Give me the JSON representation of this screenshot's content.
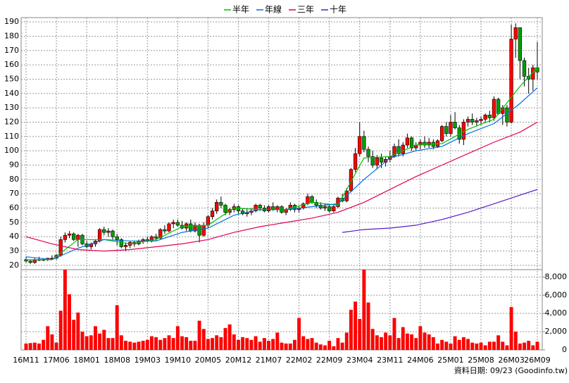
{
  "chart_data": {
    "type": "candlestick",
    "categories": [
      "16M11",
      null,
      null,
      null,
      null,
      null,
      null,
      "17M06",
      null,
      null,
      null,
      null,
      null,
      null,
      "18M01",
      null,
      null,
      null,
      null,
      null,
      null,
      "18M08",
      null,
      null,
      null,
      null,
      null,
      null,
      "19M03",
      null,
      null,
      null,
      null,
      null,
      null,
      "19M10",
      null,
      null,
      null,
      null,
      null,
      null,
      "20M05",
      null,
      null,
      null,
      null,
      null,
      null,
      "20M12",
      null,
      null,
      null,
      null,
      null,
      null,
      "21M07",
      null,
      null,
      null,
      null,
      null,
      null,
      "22M02",
      null,
      null,
      null,
      null,
      null,
      null,
      "22M09",
      null,
      null,
      null,
      null,
      null,
      null,
      "23M04",
      null,
      null,
      null,
      null,
      null,
      null,
      "23M11",
      null,
      null,
      null,
      null,
      null,
      null,
      "24M06",
      null,
      null,
      null,
      null,
      null,
      null,
      "25M01",
      null,
      null,
      null,
      null,
      null,
      null,
      "25M08",
      null,
      null,
      null,
      null,
      null,
      null,
      "26M03",
      null,
      null,
      null,
      null,
      null,
      "26M09"
    ],
    "candles": [
      [
        24,
        26,
        22,
        23
      ],
      [
        23,
        24,
        21,
        22
      ],
      [
        22,
        25,
        21,
        24
      ],
      [
        24,
        26,
        23,
        24
      ],
      [
        24,
        25,
        23,
        24
      ],
      [
        24,
        25,
        23,
        25
      ],
      [
        25,
        27,
        24,
        25
      ],
      [
        25,
        28,
        24,
        27
      ],
      [
        27,
        40,
        26,
        38
      ],
      [
        38,
        43,
        36,
        41
      ],
      [
        41,
        44,
        39,
        42
      ],
      [
        42,
        43,
        37,
        38
      ],
      [
        38,
        42,
        33,
        41
      ],
      [
        41,
        42,
        34,
        35
      ],
      [
        35,
        37,
        32,
        33
      ],
      [
        33,
        36,
        31,
        35
      ],
      [
        35,
        38,
        33,
        37
      ],
      [
        37,
        46,
        36,
        45
      ],
      [
        45,
        47,
        41,
        43
      ],
      [
        43,
        46,
        40,
        44
      ],
      [
        44,
        45,
        38,
        40
      ],
      [
        40,
        42,
        34,
        38
      ],
      [
        38,
        39,
        32,
        33
      ],
      [
        33,
        36,
        30,
        34
      ],
      [
        34,
        37,
        32,
        36
      ],
      [
        36,
        37,
        33,
        35
      ],
      [
        35,
        38,
        34,
        37
      ],
      [
        37,
        39,
        35,
        38
      ],
      [
        38,
        40,
        36,
        37
      ],
      [
        37,
        41,
        36,
        40
      ],
      [
        40,
        42,
        37,
        39
      ],
      [
        39,
        46,
        38,
        45
      ],
      [
        45,
        48,
        42,
        44
      ],
      [
        44,
        50,
        43,
        49
      ],
      [
        49,
        52,
        46,
        50
      ],
      [
        50,
        52,
        47,
        48
      ],
      [
        48,
        51,
        45,
        46
      ],
      [
        46,
        50,
        44,
        49
      ],
      [
        49,
        52,
        43,
        44
      ],
      [
        44,
        50,
        43,
        48
      ],
      [
        48,
        49,
        36,
        41
      ],
      [
        41,
        50,
        40,
        48
      ],
      [
        48,
        55,
        46,
        54
      ],
      [
        54,
        60,
        52,
        58
      ],
      [
        58,
        66,
        56,
        64
      ],
      [
        64,
        68,
        60,
        62
      ],
      [
        62,
        63,
        55,
        57
      ],
      [
        57,
        60,
        55,
        59
      ],
      [
        59,
        63,
        57,
        61
      ],
      [
        61,
        62,
        56,
        58
      ],
      [
        58,
        60,
        55,
        56
      ],
      [
        56,
        59,
        54,
        57
      ],
      [
        57,
        60,
        55,
        58
      ],
      [
        58,
        63,
        57,
        62
      ],
      [
        62,
        63,
        58,
        60
      ],
      [
        60,
        62,
        57,
        58
      ],
      [
        58,
        62,
        57,
        61
      ],
      [
        61,
        64,
        58,
        59
      ],
      [
        59,
        62,
        57,
        61
      ],
      [
        61,
        62,
        56,
        57
      ],
      [
        57,
        60,
        55,
        59
      ],
      [
        59,
        64,
        58,
        62
      ],
      [
        62,
        63,
        57,
        59
      ],
      [
        59,
        61,
        57,
        60
      ],
      [
        60,
        64,
        59,
        63
      ],
      [
        63,
        70,
        62,
        68
      ],
      [
        68,
        69,
        63,
        64
      ],
      [
        64,
        66,
        60,
        62
      ],
      [
        62,
        64,
        59,
        60
      ],
      [
        60,
        63,
        58,
        61
      ],
      [
        61,
        62,
        57,
        58
      ],
      [
        58,
        62,
        57,
        61
      ],
      [
        61,
        68,
        60,
        67
      ],
      [
        67,
        70,
        64,
        65
      ],
      [
        65,
        74,
        64,
        72
      ],
      [
        72,
        88,
        71,
        87
      ],
      [
        87,
        102,
        85,
        98
      ],
      [
        98,
        120,
        96,
        110
      ],
      [
        110,
        114,
        99,
        101
      ],
      [
        101,
        103,
        92,
        96
      ],
      [
        96,
        100,
        88,
        90
      ],
      [
        90,
        97,
        87,
        95
      ],
      [
        95,
        98,
        88,
        92
      ],
      [
        92,
        96,
        89,
        94
      ],
      [
        94,
        100,
        92,
        96
      ],
      [
        96,
        105,
        95,
        103
      ],
      [
        103,
        108,
        96,
        98
      ],
      [
        98,
        106,
        96,
        104
      ],
      [
        104,
        112,
        102,
        109
      ],
      [
        109,
        110,
        100,
        102
      ],
      [
        102,
        106,
        100,
        104
      ],
      [
        104,
        108,
        101,
        106
      ],
      [
        106,
        110,
        102,
        104
      ],
      [
        104,
        109,
        102,
        106
      ],
      [
        106,
        108,
        101,
        103
      ],
      [
        103,
        108,
        102,
        107
      ],
      [
        107,
        118,
        106,
        117
      ],
      [
        117,
        120,
        110,
        112
      ],
      [
        112,
        125,
        110,
        120
      ],
      [
        120,
        127,
        115,
        116
      ],
      [
        116,
        118,
        105,
        108
      ],
      [
        108,
        122,
        104,
        120
      ],
      [
        120,
        124,
        117,
        122
      ],
      [
        122,
        126,
        118,
        120
      ],
      [
        120,
        123,
        117,
        121
      ],
      [
        121,
        124,
        118,
        122
      ],
      [
        122,
        126,
        120,
        125
      ],
      [
        125,
        128,
        120,
        123
      ],
      [
        123,
        138,
        121,
        136
      ],
      [
        136,
        137,
        125,
        126
      ],
      [
        126,
        132,
        118,
        130
      ],
      [
        130,
        132,
        117,
        120
      ],
      [
        120,
        188,
        119,
        178
      ],
      [
        178,
        189,
        165,
        186
      ],
      [
        186,
        186,
        150,
        163
      ],
      [
        163,
        165,
        145,
        152
      ],
      [
        152,
        158,
        140,
        150
      ],
      [
        150,
        160,
        142,
        158
      ],
      [
        158,
        176,
        150,
        155
      ]
    ],
    "up_color": "#ff0000",
    "down_color": "#00a000",
    "volume": [
      700,
      750,
      800,
      700,
      1100,
      2600,
      1700,
      800,
      4300,
      8800,
      6100,
      3300,
      4100,
      2000,
      1500,
      1600,
      2600,
      1800,
      2200,
      1300,
      1300,
      4900,
      1600,
      1000,
      900,
      800,
      900,
      1000,
      1100,
      1500,
      1400,
      1100,
      1300,
      1600,
      1300,
      2600,
      1500,
      1400,
      1000,
      1000,
      3200,
      2300,
      1200,
      1300,
      1600,
      1400,
      2400,
      2800,
      1700,
      1100,
      1400,
      1300,
      1100,
      1500,
      900,
      1300,
      1000,
      1200,
      1900,
      800,
      700,
      700,
      1100,
      3500,
      1500,
      1200,
      1300,
      800,
      600,
      500,
      1000,
      400,
      1300,
      800,
      1900,
      4400,
      5300,
      3400,
      8800,
      5200,
      2300,
      1600,
      1400,
      1900,
      1600,
      3500,
      1300,
      2500,
      1800,
      1700,
      1300,
      2600,
      1900,
      1700,
      1400,
      700,
      1100,
      900,
      700,
      1500,
      1100,
      1400,
      1200,
      800,
      700,
      800,
      500,
      900,
      900,
      1600,
      900,
      500,
      4700,
      2000,
      700,
      800,
      1000,
      500,
      900
    ],
    "volume_color": "#ff0000",
    "series": [
      {
        "name": "半年",
        "color": "#00c000",
        "x": [
          0,
          6,
          12,
          18,
          24,
          30,
          36,
          42,
          48,
          54,
          60,
          66,
          72,
          78,
          84,
          90,
          96,
          102,
          108,
          114,
          118
        ],
        "values": [
          24,
          24,
          38,
          38,
          35,
          38,
          47,
          48,
          60,
          59,
          59,
          64,
          62,
          95,
          96,
          104,
          105,
          115,
          122,
          145,
          158
        ]
      },
      {
        "name": "年線",
        "color": "#0070e0",
        "x": [
          0,
          6,
          12,
          18,
          24,
          30,
          36,
          42,
          48,
          54,
          60,
          66,
          72,
          78,
          84,
          90,
          96,
          102,
          108,
          114,
          118
        ],
        "values": [
          26,
          24,
          32,
          38,
          37,
          37,
          43,
          46,
          55,
          59,
          59,
          61,
          63,
          80,
          95,
          100,
          103,
          112,
          119,
          133,
          144
        ]
      },
      {
        "name": "三年",
        "color": "#e0005a",
        "x": [
          0,
          6,
          12,
          18,
          24,
          30,
          36,
          42,
          48,
          54,
          60,
          66,
          72,
          78,
          84,
          90,
          96,
          102,
          108,
          114,
          118
        ],
        "values": [
          40,
          35,
          31,
          30,
          31,
          33,
          35,
          38,
          43,
          47,
          50,
          53,
          57,
          64,
          73,
          82,
          90,
          98,
          106,
          113,
          120
        ]
      },
      {
        "name": "十年",
        "color": "#5a18c8",
        "x": [
          73,
          78,
          84,
          90,
          96,
          102,
          108,
          114,
          118
        ],
        "values": [
          43,
          45,
          46,
          48,
          52,
          57,
          63,
          69,
          73
        ]
      }
    ],
    "ylim": [
      17,
      193
    ],
    "yticks": [
      20,
      30,
      40,
      50,
      60,
      70,
      80,
      90,
      100,
      110,
      120,
      130,
      140,
      150,
      160,
      170,
      180,
      190
    ],
    "y2lim": [
      0,
      8800
    ],
    "y2ticks": [
      0,
      {
        "value": 2000,
        "label": "2,000"
      },
      {
        "value": 4000,
        "label": "4,000"
      },
      {
        "value": 6000,
        "label": "6,000"
      },
      {
        "value": 8000,
        "label": "8,000"
      }
    ],
    "grid": true,
    "source": "資料日期: 09/23 (Goodinfo.tw)"
  }
}
